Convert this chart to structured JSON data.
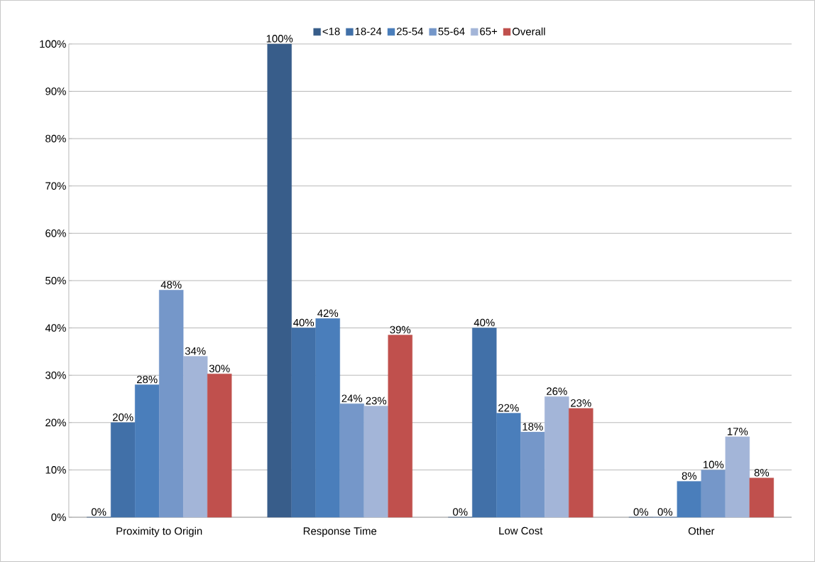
{
  "chart_data": {
    "type": "bar",
    "categories": [
      "Proximity to Origin",
      "Response Time",
      "Low Cost",
      "Other"
    ],
    "series": [
      {
        "name": "<18",
        "color": "#385d8a",
        "values": [
          0,
          100,
          0,
          0
        ],
        "value_labels": [
          "0%",
          "100%",
          "0%",
          "0%"
        ]
      },
      {
        "name": "18-24",
        "color": "#4170a8",
        "values": [
          20,
          40,
          40,
          0
        ],
        "value_labels": [
          "20%",
          "40%",
          "40%",
          "0%"
        ]
      },
      {
        "name": "25-54",
        "color": "#4a7ebb",
        "values": [
          28,
          42,
          22,
          7.6
        ],
        "value_labels": [
          "28%",
          "42%",
          "22%",
          "8%"
        ]
      },
      {
        "name": "55-64",
        "color": "#7597c9",
        "values": [
          48,
          24,
          18,
          10
        ],
        "value_labels": [
          "48%",
          "24%",
          "18%",
          "10%"
        ]
      },
      {
        "name": "65+",
        "color": "#a3b5d8",
        "values": [
          34,
          23.5,
          25.5,
          17
        ],
        "value_labels": [
          "34%",
          "23%",
          "26%",
          "17%"
        ]
      },
      {
        "name": "Overall",
        "color": "#c0504d",
        "values": [
          30.3,
          38.5,
          23,
          8.3
        ],
        "value_labels": [
          "30%",
          "39%",
          "23%",
          "8%"
        ]
      }
    ],
    "ylim": [
      0,
      100
    ],
    "yticks": [
      {
        "value": 0,
        "label": "0%"
      },
      {
        "value": 10,
        "label": "10%"
      },
      {
        "value": 20,
        "label": "20%"
      },
      {
        "value": 30,
        "label": "30%"
      },
      {
        "value": 40,
        "label": "40%"
      },
      {
        "value": 50,
        "label": "50%"
      },
      {
        "value": 60,
        "label": "60%"
      },
      {
        "value": 70,
        "label": "70%"
      },
      {
        "value": 80,
        "label": "80%"
      },
      {
        "value": 90,
        "label": "90%"
      },
      {
        "value": 100,
        "label": "100%"
      }
    ],
    "grid": "y",
    "legend": "top"
  }
}
